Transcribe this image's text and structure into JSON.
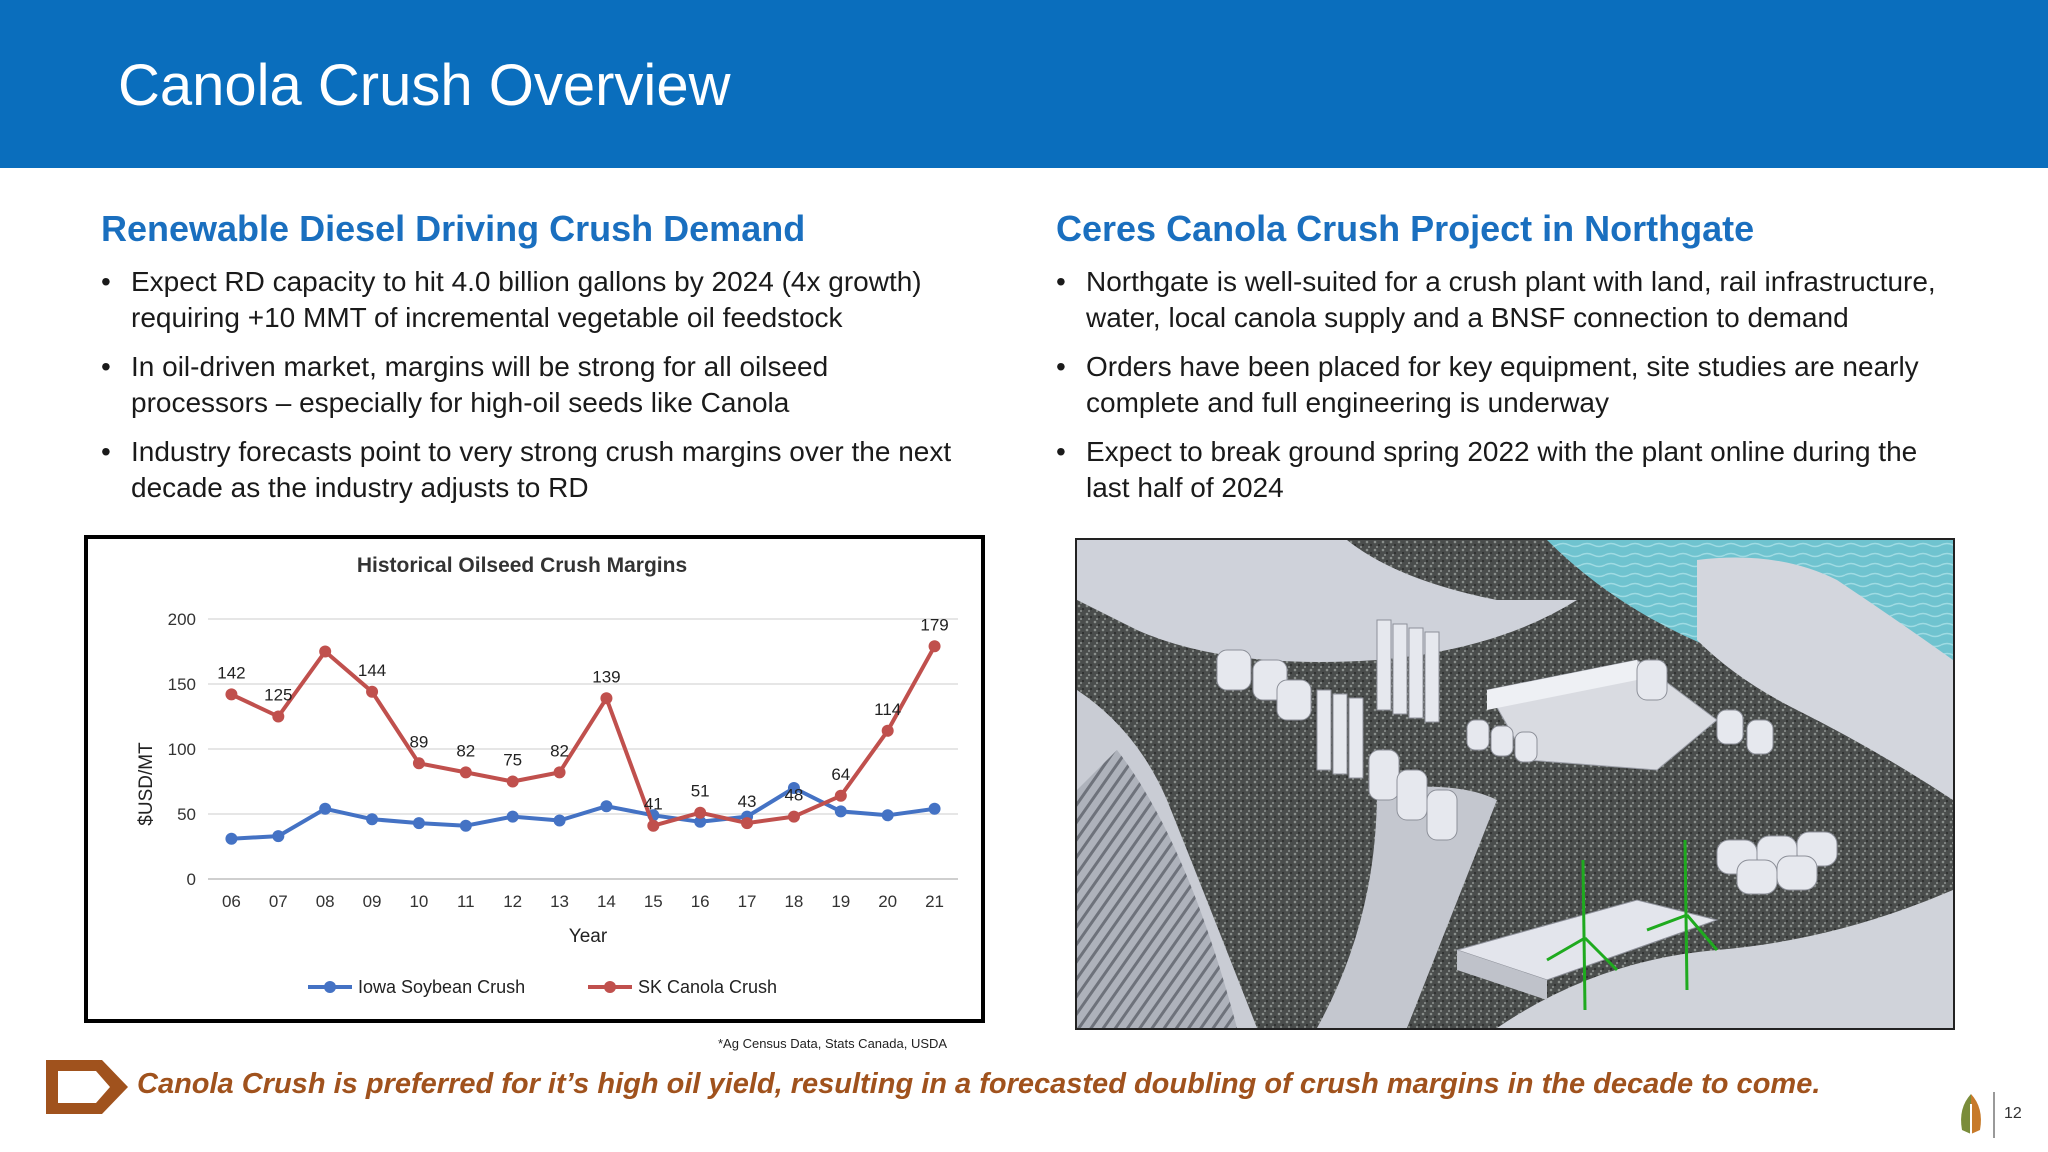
{
  "slide": {
    "title": "Canola Crush Overview",
    "page_number": "12",
    "source_note": "*Ag Census Data, Stats Canada, USDA",
    "footer": "Canola Crush is preferred for it’s high oil yield, resulting in a forecasted doubling of crush margins in the decade to come."
  },
  "left": {
    "heading": "Renewable Diesel Driving Crush Demand",
    "bullets": [
      {
        "line1": "Expect RD capacity to hit 4.0 billion gallons by 2024 (4x growth)",
        "line2": "requiring +10 MMT of incremental vegetable oil feedstock"
      },
      {
        "line1": "In oil-driven market, margins will be strong for all oilseed",
        "line2": "processors – especially for high-oil seeds like Canola"
      },
      {
        "line1": "Industry forecasts point to very strong crush margins over the next",
        "line2": "decade as the industry adjusts to RD"
      }
    ]
  },
  "right": {
    "heading": "Ceres Canola Crush Project in Northgate",
    "bullets": [
      {
        "line1": "Northgate is well-suited for a crush plant with land, rail infrastructure,",
        "line2": "water, local canola supply and a BNSF connection to demand"
      },
      {
        "line1": "Orders have been placed for key equipment, site studies are nearly",
        "line2": "complete and full engineering is underway"
      },
      {
        "line1": "Expect to break ground spring 2022 with the plant online during the",
        "line2": "last half of 2024"
      }
    ]
  },
  "colors": {
    "banner": "#0a6ebd",
    "heading": "#1a6fbf",
    "footer_text": "#a0521d",
    "iowa_series": "#4472c4",
    "canola_series": "#c0504d"
  },
  "chart_data": {
    "type": "line",
    "title": "Historical Oilseed Crush Margins",
    "xlabel": "Year",
    "ylabel": "$USD/MT",
    "ylim": [
      0,
      200
    ],
    "yticks": [
      0,
      50,
      100,
      150,
      200
    ],
    "grid": true,
    "legend": "bottom",
    "x": [
      "06",
      "07",
      "08",
      "09",
      "10",
      "11",
      "12",
      "13",
      "14",
      "15",
      "16",
      "17",
      "18",
      "19",
      "20",
      "21"
    ],
    "series": [
      {
        "name": "Iowa Soybean Crush",
        "color": "#4472c4",
        "labeled": false,
        "values": [
          31,
          33,
          54,
          46,
          43,
          41,
          48,
          45,
          56,
          49,
          44,
          48,
          70,
          52,
          49,
          54
        ]
      },
      {
        "name": "SK Canola Crush",
        "color": "#c0504d",
        "labeled": true,
        "values": [
          142,
          125,
          175,
          144,
          89,
          82,
          75,
          82,
          139,
          41,
          51,
          43,
          48,
          64,
          114,
          179
        ],
        "labels": [
          "142",
          "125",
          "",
          "144",
          "89",
          "82",
          "75",
          "82",
          "139",
          "41",
          "51",
          "43",
          "48",
          "64",
          "114",
          "179"
        ]
      }
    ]
  },
  "photo": {
    "subject": "3D rendering of canola crush plant site"
  }
}
